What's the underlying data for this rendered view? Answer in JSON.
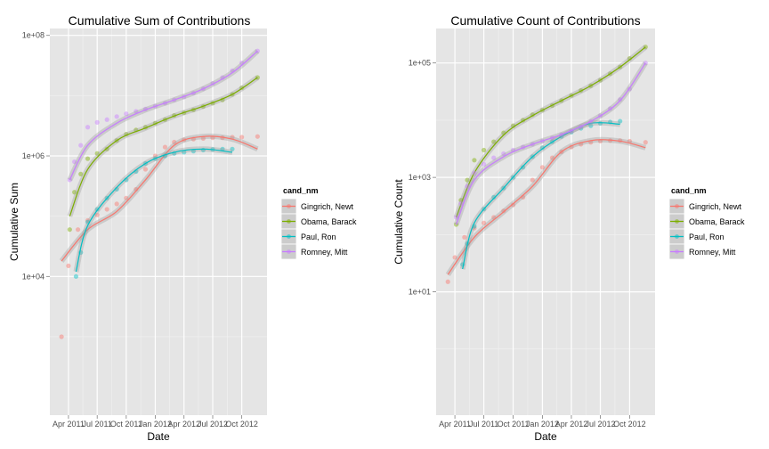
{
  "chart_data": [
    {
      "type": "scatter",
      "title": "Cumulative Sum of Contributions",
      "xlabel": "Date",
      "ylabel": "Cumulative Sum",
      "y_scale": "log10",
      "ylim": [
        50,
        130000000
      ],
      "xlim": [
        "2011-02-01",
        "2012-12-20"
      ],
      "grid": true,
      "x_ticks": [
        {
          "date": "2011-04-01",
          "label": "Apr 2011"
        },
        {
          "date": "2011-07-01",
          "label": "Jul 2011"
        },
        {
          "date": "2011-10-01",
          "label": "Oct 2011"
        },
        {
          "date": "2012-01-01",
          "label": "Jan 2012"
        },
        {
          "date": "2012-04-01",
          "label": "Apr 2012"
        },
        {
          "date": "2012-07-01",
          "label": "Jul 2012"
        },
        {
          "date": "2012-10-01",
          "label": "Oct 2012"
        }
      ],
      "y_ticks": [
        {
          "value": 10000,
          "label": "1e+04"
        },
        {
          "value": 1000000,
          "label": "1e+06"
        },
        {
          "value": 100000000,
          "label": "1e+08"
        }
      ],
      "legend_title": "cand_nm",
      "legend_position": "right",
      "series": [
        {
          "name": "Gingrich, Newt",
          "color": "#F8766D",
          "x": [
            "2011-03-10",
            "2011-04-01",
            "2011-05-01",
            "2011-06-01",
            "2011-07-01",
            "2011-08-01",
            "2011-09-01",
            "2011-10-01",
            "2011-11-01",
            "2011-12-01",
            "2012-01-01",
            "2012-02-01",
            "2012-03-01",
            "2012-04-01",
            "2012-05-01",
            "2012-06-01",
            "2012-07-01",
            "2012-08-01",
            "2012-09-01",
            "2012-10-01",
            "2012-11-20"
          ],
          "y": [
            1000,
            15000,
            60000,
            85000,
            105000,
            130000,
            160000,
            200000,
            280000,
            600000,
            1000000,
            1400000,
            1700000,
            1850000,
            1900000,
            1950000,
            2000000,
            2000000,
            2050000,
            2050000,
            2100000
          ],
          "trend_x": [
            "2011-03-10",
            "2011-06-01",
            "2011-09-01",
            "2011-12-01",
            "2012-03-01",
            "2012-06-01",
            "2012-09-01",
            "2012-11-20"
          ],
          "trend_y": [
            18000,
            60000,
            120000,
            400000,
            1500000,
            2100000,
            1900000,
            1300000
          ]
        },
        {
          "name": "Obama, Barack",
          "color": "#7CAE00",
          "x": [
            "2011-04-05",
            "2011-04-20",
            "2011-05-10",
            "2011-06-01",
            "2011-07-01",
            "2011-08-01",
            "2011-09-01",
            "2011-10-01",
            "2011-11-01",
            "2011-12-01",
            "2012-01-01",
            "2012-02-01",
            "2012-03-01",
            "2012-04-01",
            "2012-05-01",
            "2012-06-01",
            "2012-07-01",
            "2012-08-01",
            "2012-09-01",
            "2012-10-01",
            "2012-11-20"
          ],
          "y": [
            60000,
            250000,
            500000,
            900000,
            1100000,
            1300000,
            1800000,
            2300000,
            2700000,
            3000000,
            3500000,
            4000000,
            4700000,
            5200000,
            5800000,
            6600000,
            7500000,
            8500000,
            10500000,
            13500000,
            20000000
          ],
          "trend_x": [
            "2011-04-05",
            "2011-06-01",
            "2011-09-01",
            "2011-12-01",
            "2012-03-01",
            "2012-06-01",
            "2012-09-01",
            "2012-11-20"
          ],
          "trend_y": [
            100000,
            600000,
            1800000,
            2900000,
            4600000,
            6700000,
            10500000,
            20000000
          ]
        },
        {
          "name": "Paul, Ron",
          "color": "#00BFC4",
          "x": [
            "2011-04-25",
            "2011-05-10",
            "2011-06-01",
            "2011-07-01",
            "2011-08-01",
            "2011-09-01",
            "2011-10-01",
            "2011-11-01",
            "2011-12-01",
            "2012-01-01",
            "2012-02-01",
            "2012-03-01",
            "2012-04-01",
            "2012-05-01",
            "2012-06-01",
            "2012-07-01",
            "2012-08-01",
            "2012-09-01"
          ],
          "y": [
            10000,
            25000,
            80000,
            130000,
            200000,
            280000,
            400000,
            550000,
            750000,
            900000,
            1000000,
            1100000,
            1150000,
            1200000,
            1250000,
            1280000,
            1300000,
            1300000
          ],
          "trend_x": [
            "2011-04-25",
            "2011-06-01",
            "2011-09-01",
            "2011-12-01",
            "2012-03-01",
            "2012-06-01",
            "2012-09-01"
          ],
          "trend_y": [
            12000,
            70000,
            300000,
            750000,
            1150000,
            1300000,
            1150000
          ]
        },
        {
          "name": "Romney, Mitt",
          "color": "#C77CFF",
          "x": [
            "2011-04-05",
            "2011-04-20",
            "2011-05-10",
            "2011-06-01",
            "2011-07-01",
            "2011-08-01",
            "2011-09-01",
            "2011-10-01",
            "2011-11-01",
            "2011-12-01",
            "2012-01-01",
            "2012-02-01",
            "2012-03-01",
            "2012-04-01",
            "2012-05-01",
            "2012-06-01",
            "2012-07-01",
            "2012-08-01",
            "2012-09-01",
            "2012-10-01",
            "2012-11-20"
          ],
          "y": [
            400000,
            800000,
            1500000,
            3000000,
            3600000,
            4000000,
            4500000,
            5000000,
            5500000,
            6000000,
            6700000,
            7500000,
            8500000,
            9500000,
            11000000,
            13000000,
            16000000,
            20000000,
            26000000,
            35000000,
            55000000
          ],
          "trend_x": [
            "2011-04-05",
            "2011-06-01",
            "2011-09-01",
            "2011-12-01",
            "2012-03-01",
            "2012-06-01",
            "2012-09-01",
            "2012-11-20"
          ],
          "trend_y": [
            400000,
            1500000,
            3500000,
            5800000,
            8500000,
            13000000,
            24000000,
            55000000
          ]
        }
      ]
    },
    {
      "type": "scatter",
      "title": "Cumulative Count of Contributions",
      "xlabel": "Date",
      "ylabel": "Cumulative Count",
      "y_scale": "log10",
      "ylim": [
        0.07,
        400000
      ],
      "xlim": [
        "2011-02-01",
        "2012-12-20"
      ],
      "grid": true,
      "x_ticks": [
        {
          "date": "2011-04-01",
          "label": "Apr 2011"
        },
        {
          "date": "2011-07-01",
          "label": "Jul 2011"
        },
        {
          "date": "2011-10-01",
          "label": "Oct 2011"
        },
        {
          "date": "2012-01-01",
          "label": "Jan 2012"
        },
        {
          "date": "2012-04-01",
          "label": "Apr 2012"
        },
        {
          "date": "2012-07-01",
          "label": "Jul 2012"
        },
        {
          "date": "2012-10-01",
          "label": "Oct 2012"
        }
      ],
      "y_ticks": [
        {
          "value": 10,
          "label": "1e+01"
        },
        {
          "value": 1000,
          "label": "1e+03"
        },
        {
          "value": 100000,
          "label": "1e+05"
        }
      ],
      "legend_title": "cand_nm",
      "legend_position": "right",
      "series": [
        {
          "name": "Gingrich, Newt",
          "color": "#F8766D",
          "x": [
            "2011-03-10",
            "2011-04-01",
            "2011-05-01",
            "2011-06-01",
            "2011-07-01",
            "2011-08-01",
            "2011-09-01",
            "2011-10-01",
            "2011-11-01",
            "2011-12-01",
            "2012-01-01",
            "2012-02-01",
            "2012-03-01",
            "2012-04-01",
            "2012-05-01",
            "2012-06-01",
            "2012-07-01",
            "2012-08-01",
            "2012-09-01",
            "2012-10-01",
            "2012-11-20"
          ],
          "y": [
            15,
            40,
            90,
            130,
            160,
            200,
            260,
            330,
            450,
            900,
            1500,
            2200,
            2800,
            3400,
            3800,
            4100,
            4300,
            4400,
            4400,
            4300,
            4100
          ],
          "trend_x": [
            "2011-03-10",
            "2011-06-01",
            "2011-09-01",
            "2011-12-01",
            "2012-03-01",
            "2012-06-01",
            "2012-09-01",
            "2012-11-20"
          ],
          "trend_y": [
            20,
            90,
            250,
            700,
            2800,
            4400,
            4300,
            3300
          ]
        },
        {
          "name": "Obama, Barack",
          "color": "#7CAE00",
          "x": [
            "2011-04-05",
            "2011-04-20",
            "2011-05-10",
            "2011-06-01",
            "2011-07-01",
            "2011-08-01",
            "2011-09-01",
            "2011-10-01",
            "2011-11-01",
            "2011-12-01",
            "2012-01-01",
            "2012-02-01",
            "2012-03-01",
            "2012-04-01",
            "2012-05-01",
            "2012-06-01",
            "2012-07-01",
            "2012-08-01",
            "2012-09-01",
            "2012-10-01",
            "2012-11-20"
          ],
          "y": [
            150,
            400,
            900,
            2000,
            3000,
            4200,
            6000,
            8000,
            10000,
            12500,
            15000,
            18000,
            22000,
            27000,
            33000,
            40000,
            50000,
            65000,
            85000,
            120000,
            190000
          ],
          "trend_x": [
            "2011-04-05",
            "2011-06-01",
            "2011-09-01",
            "2011-12-01",
            "2012-03-01",
            "2012-06-01",
            "2012-09-01",
            "2012-11-20"
          ],
          "trend_y": [
            200,
            1200,
            5500,
            12000,
            22000,
            40000,
            85000,
            190000
          ]
        },
        {
          "name": "Paul, Ron",
          "color": "#00BFC4",
          "x": [
            "2011-04-25",
            "2011-05-10",
            "2011-06-01",
            "2011-07-01",
            "2011-08-01",
            "2011-09-01",
            "2011-10-01",
            "2011-11-01",
            "2011-12-01",
            "2012-01-01",
            "2012-02-01",
            "2012-03-01",
            "2012-04-01",
            "2012-05-01",
            "2012-06-01",
            "2012-07-01",
            "2012-08-01",
            "2012-09-01"
          ],
          "y": [
            30,
            70,
            140,
            280,
            450,
            650,
            1000,
            1500,
            2300,
            3300,
            4200,
            5200,
            6200,
            7200,
            8000,
            8800,
            9300,
            9600
          ],
          "trend_x": [
            "2011-04-25",
            "2011-06-01",
            "2011-09-01",
            "2011-12-01",
            "2012-03-01",
            "2012-06-01",
            "2012-09-01"
          ],
          "trend_y": [
            25,
            160,
            650,
            2300,
            5200,
            8800,
            8500
          ]
        },
        {
          "name": "Romney, Mitt",
          "color": "#C77CFF",
          "x": [
            "2011-04-05",
            "2011-04-20",
            "2011-05-10",
            "2011-06-01",
            "2011-07-01",
            "2011-08-01",
            "2011-09-01",
            "2011-10-01",
            "2011-11-01",
            "2011-12-01",
            "2012-01-01",
            "2012-02-01",
            "2012-03-01",
            "2012-04-01",
            "2012-05-01",
            "2012-06-01",
            "2012-07-01",
            "2012-08-01",
            "2012-09-01",
            "2012-10-01",
            "2012-11-20"
          ],
          "y": [
            200,
            350,
            700,
            1200,
            1700,
            2200,
            2600,
            3000,
            3400,
            3800,
            4300,
            4900,
            5600,
            6500,
            7700,
            9500,
            12000,
            16000,
            23000,
            35000,
            100000
          ],
          "trend_x": [
            "2011-04-05",
            "2011-06-01",
            "2011-09-01",
            "2011-12-01",
            "2012-03-01",
            "2012-06-01",
            "2012-09-01",
            "2012-11-20"
          ],
          "trend_y": [
            150,
            900,
            2300,
            3800,
            5600,
            9500,
            22000,
            100000
          ]
        }
      ]
    }
  ]
}
